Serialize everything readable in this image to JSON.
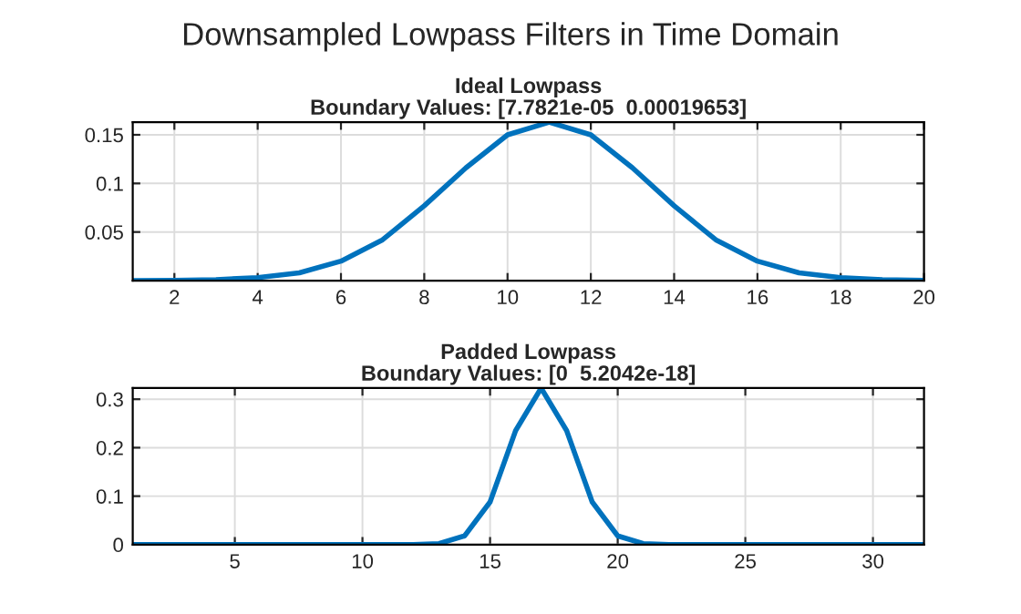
{
  "chart_data": [
    {
      "type": "line",
      "title": "Ideal Lowpass",
      "subtitle": "Boundary Values: [7.7821e-05  0.00019653]",
      "annotations": [
        "Downsampled Lowpass Filters in Time Domain"
      ],
      "x": [
        1,
        2,
        3,
        4,
        5,
        6,
        7,
        8,
        9,
        10,
        11,
        12,
        13,
        14,
        15,
        16,
        17,
        18,
        19,
        20
      ],
      "series": [
        {
          "color": "#0072bd",
          "values": [
            0.0001,
            0.0003,
            0.001,
            0.003,
            0.008,
            0.02,
            0.042,
            0.077,
            0.116,
            0.15,
            0.163,
            0.15,
            0.116,
            0.077,
            0.042,
            0.02,
            0.008,
            0.003,
            0.001,
            0.0002
          ]
        }
      ],
      "xlim": [
        1,
        20
      ],
      "xticks": [
        2,
        4,
        6,
        8,
        10,
        12,
        14,
        16,
        18,
        20
      ],
      "ylim": [
        0,
        0.163
      ],
      "yticks": [
        0.05,
        0.1,
        0.15
      ],
      "grid": true,
      "line_style": "solid",
      "marker": "none"
    },
    {
      "type": "line",
      "title": "Padded Lowpass",
      "subtitle": "Boundary Values: [0  5.2042e-18]",
      "x": [
        1,
        2,
        3,
        4,
        5,
        6,
        7,
        8,
        9,
        10,
        11,
        12,
        13,
        14,
        15,
        16,
        17,
        18,
        19,
        20,
        21,
        22,
        23,
        24,
        25,
        26,
        27,
        28,
        29,
        30,
        31,
        32
      ],
      "series": [
        {
          "color": "#0072bd",
          "values": [
            0,
            0,
            0,
            0,
            0,
            0,
            0,
            0,
            0,
            0,
            0,
            0,
            0.002,
            0.018,
            0.088,
            0.235,
            0.323,
            0.235,
            0.088,
            0.018,
            0.002,
            0,
            0,
            0,
            0,
            0,
            0,
            0,
            0,
            0,
            0,
            0
          ]
        }
      ],
      "xlim": [
        1,
        32
      ],
      "xticks": [
        5,
        10,
        15,
        20,
        25,
        30
      ],
      "ylim": [
        0,
        0.323
      ],
      "yticks": [
        0,
        0.1,
        0.2,
        0.3
      ],
      "grid": true,
      "line_style": "solid",
      "marker": "none"
    }
  ]
}
